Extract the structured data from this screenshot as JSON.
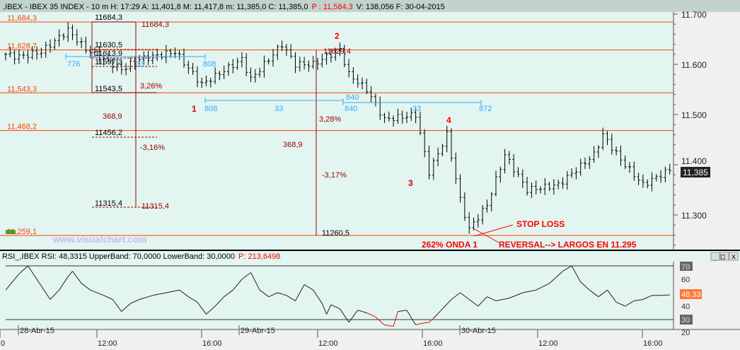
{
  "header": {
    "text": ",IBEX - IBEX 35 INDEX -   10 m H: 17:29 A: 11,401,8 M: 11,417,8 m: 11,385,0 C: 11,385,0",
    "p_text": "P : 11,584,3",
    "tail": "V: 138,056 F: 30-04-2015"
  },
  "rsi_header": {
    "text": "RSI_,IBEX RSI: 48,3315 UpperBand: 70,0000 LowerBand: 30,0000",
    "p_text": "P: 213,6498"
  },
  "window_buttons": {
    "minimize": "_",
    "maximize": "□",
    "close": "x"
  },
  "watermark": "www.visualchart.com",
  "colors": {
    "bg": "#e2f5f0",
    "level": "#ff4400",
    "fib": "#990000",
    "measure": "#33aaff",
    "wave": "#ff0000"
  },
  "levels": [
    {
      "value": 11684.3,
      "label": "11,684,3"
    },
    {
      "value": 11628.7,
      "label": "11,628,7"
    },
    {
      "value": 11543.3,
      "label": "11,543,3"
    },
    {
      "value": 11468.2,
      "label": "11,468,2"
    },
    {
      "value": 11259.1,
      "label": "11,259,1"
    }
  ],
  "fib_labels": {
    "a": "11684,3",
    "b": "11630,5",
    "c": "11613,9",
    "d": "11597,3",
    "e": "11543,5",
    "f": "11456,2",
    "g": "11315,4",
    "arrow1_top": "11684,3",
    "arrow1_bottom": "11315,4",
    "pct1": "3,26%",
    "pct2": "-3,16%",
    "range1": "368,9",
    "arrow2_top": "11629,4",
    "arrow2_bottom": "11260,5",
    "pct3": "3,28%",
    "pct4": "-3,17%",
    "range2": "368,9"
  },
  "measures": {
    "m1": [
      "776",
      "33",
      "808"
    ],
    "m2": [
      "808",
      "33",
      "840"
    ],
    "m3": [
      "840",
      "33",
      "872"
    ]
  },
  "waves": [
    "1",
    "2",
    "3",
    "4"
  ],
  "notes": {
    "stop": "STOP LOSS",
    "onda": "262% ONDA 1",
    "reversal": "REVERSAL--> LARGOS EN 11.295"
  },
  "last_price": "11,385",
  "price_axis": [
    "11.700",
    "11.600",
    "11.500",
    "11.400",
    "11.300"
  ],
  "rsi_axis": {
    "upper": "70",
    "v60": "60",
    "current": "48,33",
    "v40": "40",
    "lower": "30",
    "v20": "20"
  },
  "time_axis": [
    "0",
    "12:00",
    "16:00",
    "12:00",
    "16:00",
    "12:00",
    "16:00"
  ],
  "days": [
    "28-Abr-15",
    "29-Abr-15",
    "30-Abr-15"
  ],
  "chart_data": [
    {
      "type": "ohlc",
      "title": "IBEX 35 INDEX 10 m",
      "ylim": [
        11225,
        11710
      ],
      "bars": 150,
      "close_path": [
        [
          0,
          11620
        ],
        [
          3,
          11615
        ],
        [
          8,
          11625
        ],
        [
          14,
          11668
        ],
        [
          18,
          11630
        ],
        [
          26,
          11590
        ],
        [
          30,
          11610
        ],
        [
          38,
          11625
        ],
        [
          44,
          11560
        ],
        [
          53,
          11610
        ],
        [
          55,
          11570
        ],
        [
          62,
          11640
        ],
        [
          65,
          11600
        ],
        [
          69,
          11600
        ],
        [
          75,
          11630
        ],
        [
          77,
          11580
        ],
        [
          81,
          11550
        ],
        [
          85,
          11490
        ],
        [
          92,
          11500
        ],
        [
          95,
          11385
        ],
        [
          99,
          11460
        ],
        [
          102,
          11330
        ],
        [
          104,
          11272
        ],
        [
          108,
          11320
        ],
        [
          112,
          11420
        ],
        [
          117,
          11350
        ],
        [
          124,
          11360
        ],
        [
          132,
          11420
        ],
        [
          134,
          11460
        ],
        [
          138,
          11410
        ],
        [
          143,
          11360
        ],
        [
          149,
          11390
        ]
      ]
    },
    {
      "type": "line",
      "title": "RSI",
      "ylim": [
        18,
        75
      ],
      "upper_band": 70,
      "lower_band": 30,
      "points": [
        [
          0,
          52
        ],
        [
          3,
          64
        ],
        [
          5,
          70
        ],
        [
          8,
          55
        ],
        [
          10,
          45
        ],
        [
          12,
          52
        ],
        [
          14,
          62
        ],
        [
          15,
          66
        ],
        [
          17,
          57
        ],
        [
          19,
          52
        ],
        [
          22,
          48
        ],
        [
          24,
          45
        ],
        [
          26,
          36
        ],
        [
          28,
          42
        ],
        [
          30,
          45
        ],
        [
          33,
          48
        ],
        [
          36,
          50
        ],
        [
          39,
          52
        ],
        [
          41,
          47
        ],
        [
          43,
          43
        ],
        [
          45,
          34
        ],
        [
          47,
          40
        ],
        [
          49,
          47
        ],
        [
          51,
          52
        ],
        [
          53,
          60
        ],
        [
          55,
          65
        ],
        [
          57,
          52
        ],
        [
          59,
          47
        ],
        [
          61,
          50
        ],
        [
          63,
          48
        ],
        [
          65,
          44
        ],
        [
          67,
          56
        ],
        [
          69,
          52
        ],
        [
          71,
          42
        ],
        [
          72,
          34
        ],
        [
          73,
          41
        ],
        [
          75,
          38
        ],
        [
          77,
          28
        ],
        [
          79,
          37
        ],
        [
          81,
          35
        ],
        [
          83,
          32
        ],
        [
          85,
          26
        ],
        [
          87,
          25
        ],
        [
          88,
          36
        ],
        [
          90,
          37
        ],
        [
          92,
          26
        ],
        [
          93,
          27
        ],
        [
          95,
          28
        ],
        [
          96,
          31
        ],
        [
          98,
          38
        ],
        [
          100,
          45
        ],
        [
          102,
          50
        ],
        [
          104,
          45
        ],
        [
          106,
          40
        ],
        [
          108,
          47
        ],
        [
          110,
          44
        ],
        [
          113,
          46
        ],
        [
          116,
          50
        ],
        [
          119,
          52
        ],
        [
          122,
          57
        ],
        [
          125,
          66
        ],
        [
          127,
          70
        ],
        [
          129,
          58
        ],
        [
          131,
          52
        ],
        [
          133,
          47
        ],
        [
          135,
          52
        ],
        [
          137,
          43
        ],
        [
          139,
          40
        ],
        [
          141,
          44
        ],
        [
          143,
          45
        ],
        [
          145,
          48
        ],
        [
          147,
          48
        ],
        [
          149,
          48.33
        ]
      ]
    }
  ]
}
